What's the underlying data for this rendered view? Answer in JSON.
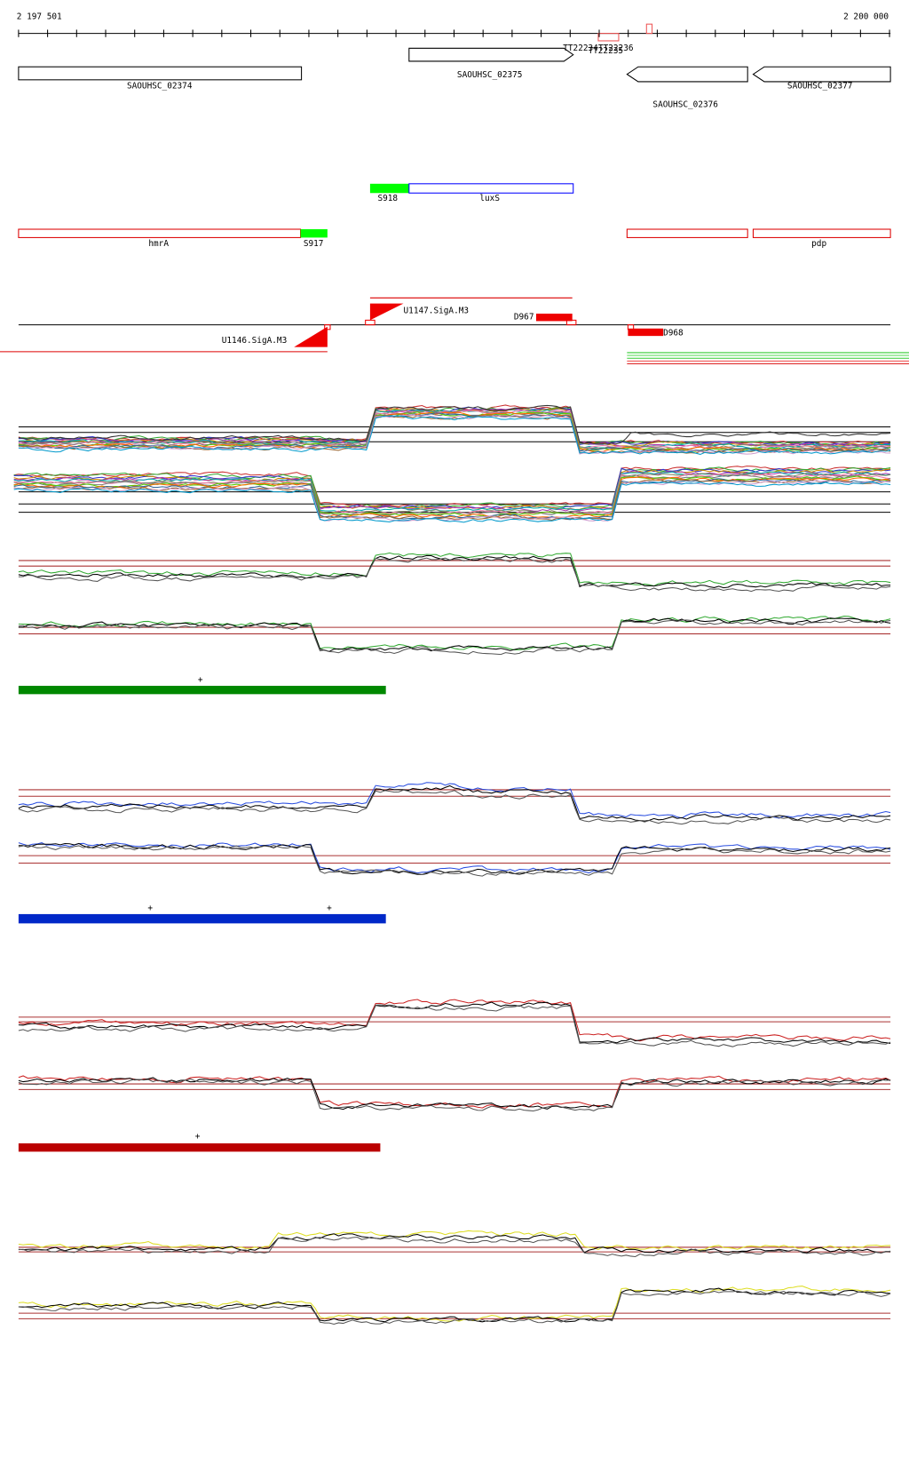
{
  "ruler": {
    "start": "2 197 501",
    "end": "2 200 000"
  },
  "genes": [
    "SAOUHSC_02374",
    "SAOUHSC_02375",
    "SAOUHSC_02376",
    "SAOUHSC_02377"
  ],
  "terminators": [
    "TT22234",
    "TT22235",
    "TT22236"
  ],
  "features": {
    "s918": "S918",
    "luxs": "luxS",
    "hmra": "hmrA",
    "s917": "S917",
    "pdp": "pdp"
  },
  "promoters": {
    "u1147": "U1147.SigA.M3",
    "d967": "D967",
    "u1146": "U1146.SigA.M3",
    "d968": "D968"
  },
  "markers": [
    "+",
    "+",
    "+",
    "+"
  ]
}
